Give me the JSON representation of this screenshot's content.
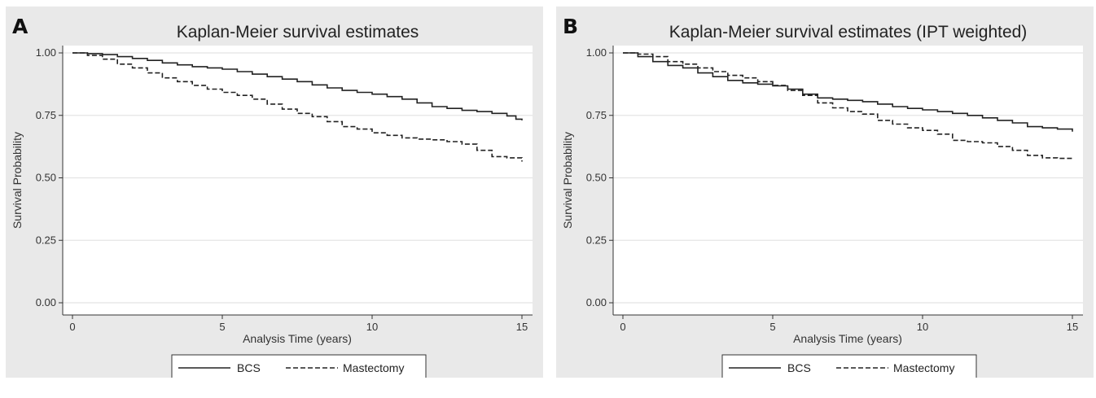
{
  "panels": [
    {
      "letter": "A",
      "chart_data": {
        "type": "line",
        "title": "Kaplan-Meier survival estimates",
        "xlabel": "Analysis Time (years)",
        "ylabel": "Survival Probability",
        "xlim": [
          0,
          15
        ],
        "ylim": [
          0,
          1
        ],
        "x_ticks": [
          "0",
          "5",
          "10",
          "15"
        ],
        "y_ticks": [
          "0.00",
          "0.25",
          "0.50",
          "0.75",
          "1.00"
        ],
        "grid": true,
        "legend": "bottom",
        "series": [
          {
            "name": "BCS",
            "style": "solid",
            "x": [
              0,
              0.5,
              1,
              1.5,
              2,
              2.5,
              3,
              3.5,
              4,
              4.5,
              5,
              5.5,
              6,
              6.5,
              7,
              7.5,
              8,
              8.5,
              9,
              9.5,
              10,
              10.5,
              11,
              11.5,
              12,
              12.5,
              13,
              13.5,
              14,
              14.5,
              14.8,
              15
            ],
            "y": [
              1.0,
              0.997,
              0.993,
              0.985,
              0.978,
              0.97,
              0.96,
              0.952,
              0.945,
              0.94,
              0.935,
              0.925,
              0.915,
              0.905,
              0.895,
              0.885,
              0.872,
              0.86,
              0.85,
              0.842,
              0.835,
              0.825,
              0.815,
              0.8,
              0.785,
              0.778,
              0.77,
              0.765,
              0.758,
              0.748,
              0.735,
              0.73
            ]
          },
          {
            "name": "Mastectomy",
            "style": "dashed",
            "x": [
              0,
              0.5,
              1,
              1.5,
              2,
              2.5,
              3,
              3.5,
              4,
              4.5,
              5,
              5.5,
              6,
              6.5,
              7,
              7.5,
              8,
              8.5,
              9,
              9.5,
              10,
              10.5,
              11,
              11.5,
              12,
              12.5,
              13,
              13.5,
              14,
              14.5,
              14.8,
              15
            ],
            "y": [
              1.0,
              0.99,
              0.975,
              0.955,
              0.94,
              0.92,
              0.9,
              0.885,
              0.87,
              0.855,
              0.842,
              0.83,
              0.815,
              0.795,
              0.775,
              0.758,
              0.745,
              0.725,
              0.705,
              0.695,
              0.68,
              0.67,
              0.66,
              0.655,
              0.652,
              0.645,
              0.635,
              0.61,
              0.585,
              0.58,
              0.58,
              0.565
            ]
          }
        ]
      }
    },
    {
      "letter": "B",
      "chart_data": {
        "type": "line",
        "title": "Kaplan-Meier survival estimates (IPT weighted)",
        "xlabel": "Analysis Time (years)",
        "ylabel": "Survival Probability",
        "xlim": [
          0,
          15
        ],
        "ylim": [
          0,
          1
        ],
        "x_ticks": [
          "0",
          "5",
          "10",
          "15"
        ],
        "y_ticks": [
          "0.00",
          "0.25",
          "0.50",
          "0.75",
          "1.00"
        ],
        "grid": true,
        "legend": "bottom",
        "series": [
          {
            "name": "BCS",
            "style": "solid",
            "x": [
              0,
              0.5,
              1,
              1.5,
              2,
              2.5,
              3,
              3.5,
              4,
              4.5,
              5,
              5.5,
              6,
              6.5,
              7,
              7.5,
              8,
              8.5,
              9,
              9.5,
              10,
              10.5,
              11,
              11.5,
              12,
              12.5,
              13,
              13.5,
              14,
              14.5,
              15
            ],
            "y": [
              1.0,
              0.985,
              0.965,
              0.95,
              0.94,
              0.92,
              0.905,
              0.89,
              0.88,
              0.875,
              0.868,
              0.855,
              0.835,
              0.82,
              0.815,
              0.81,
              0.805,
              0.795,
              0.785,
              0.778,
              0.772,
              0.765,
              0.758,
              0.75,
              0.74,
              0.73,
              0.72,
              0.705,
              0.7,
              0.695,
              0.685
            ]
          },
          {
            "name": "Mastectomy",
            "style": "dashed",
            "x": [
              0,
              0.5,
              1,
              1.5,
              2,
              2.5,
              3,
              3.5,
              4,
              4.5,
              5,
              5.5,
              6,
              6.5,
              7,
              7.5,
              8,
              8.5,
              9,
              9.5,
              10,
              10.5,
              11,
              11.5,
              12,
              12.5,
              13,
              13.5,
              14,
              14.5,
              15
            ],
            "y": [
              1.0,
              0.995,
              0.985,
              0.965,
              0.955,
              0.94,
              0.925,
              0.91,
              0.9,
              0.885,
              0.87,
              0.85,
              0.83,
              0.8,
              0.78,
              0.765,
              0.755,
              0.73,
              0.715,
              0.7,
              0.69,
              0.675,
              0.65,
              0.645,
              0.64,
              0.625,
              0.61,
              0.59,
              0.58,
              0.578,
              0.57
            ]
          }
        ]
      }
    }
  ]
}
